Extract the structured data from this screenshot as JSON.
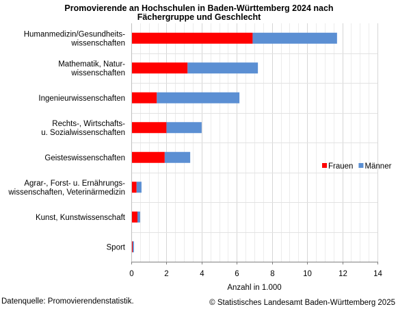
{
  "chart_data": {
    "type": "bar",
    "orientation": "horizontal",
    "stacked": true,
    "title_line1": "Promovierende an Hochschulen in Baden-Württemberg 2024 nach",
    "title_line2": "Fächergruppe und Geschlecht",
    "categories": [
      [
        "Humanmedizin/Gesundheits-",
        "wissenschaften"
      ],
      [
        "Mathematik, Natur-",
        "wissenschaften"
      ],
      [
        "Ingenieurwissenschaften"
      ],
      [
        "Rechts-, Wirtschafts-",
        "u. Sozialwissenschaften"
      ],
      [
        "Geisteswissenschaften"
      ],
      [
        "Agrar-, Forst- u. Ernährungs-",
        "wissenschaften, Veterinärmedizin"
      ],
      [
        "Kunst, Kunstwissenschaft"
      ],
      [
        "Sport"
      ]
    ],
    "series": [
      {
        "name": "Frauen",
        "color": "#ff0000",
        "values": [
          6.9,
          3.2,
          1.45,
          2.0,
          1.9,
          0.3,
          0.35,
          0.08
        ]
      },
      {
        "name": "Männer",
        "color": "#5b8fd3",
        "values": [
          4.8,
          4.0,
          4.7,
          2.0,
          1.45,
          0.28,
          0.15,
          0.07
        ]
      }
    ],
    "xlabel": "Anzahl in 1.000",
    "xlim": [
      0,
      14
    ],
    "xticks": [
      0,
      2,
      4,
      6,
      8,
      10,
      12,
      14
    ],
    "grid": true,
    "legend_position": "right"
  },
  "footer": {
    "source": "Datenquelle: Promovierendenstatistik.",
    "copyright": "© Statistisches Landesamt Baden-Württemberg 2025"
  }
}
